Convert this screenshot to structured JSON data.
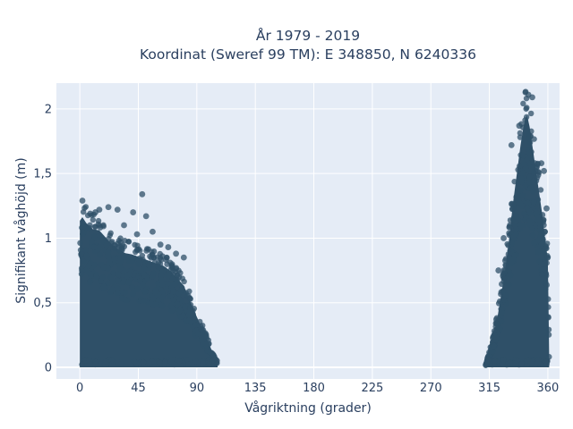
{
  "chart_data": {
    "type": "scatter",
    "title_line1": "År 1979 - 2019",
    "title_line2": "Koordinat (Sweref 99 TM): E 348850, N 6240336",
    "xlabel": "Vågriktning (grader)",
    "ylabel": "Signifikant våghöjd (m)",
    "xlim": [
      -18,
      369
    ],
    "ylim": [
      -0.09,
      2.2
    ],
    "xticks": [
      0,
      45,
      90,
      135,
      180,
      225,
      270,
      315,
      360
    ],
    "xtick_labels": [
      "0",
      "45",
      "90",
      "135",
      "180",
      "225",
      "270",
      "315",
      "360"
    ],
    "yticks": [
      0,
      0.5,
      1,
      1.5,
      2
    ],
    "ytick_labels": [
      "0",
      "0,5",
      "1",
      "1,5",
      "2"
    ],
    "grid": true,
    "marker_color": "#2f5068",
    "plot_bg": "#e5ecf6",
    "clusters": [
      {
        "name": "",
        "x_range": [
          0,
          106
        ],
        "envelope": [
          [
            0,
            1.22
          ],
          [
            2,
            1.25
          ],
          [
            5,
            1.2
          ],
          [
            10,
            1.15
          ],
          [
            15,
            1.14
          ],
          [
            20,
            1.08
          ],
          [
            25,
            1.02
          ],
          [
            30,
            0.98
          ],
          [
            35,
            0.95
          ],
          [
            40,
            0.94
          ],
          [
            45,
            0.92
          ],
          [
            50,
            0.9
          ],
          [
            55,
            0.88
          ],
          [
            60,
            0.86
          ],
          [
            65,
            0.84
          ],
          [
            70,
            0.8
          ],
          [
            75,
            0.74
          ],
          [
            80,
            0.68
          ],
          [
            85,
            0.55
          ],
          [
            90,
            0.42
          ],
          [
            95,
            0.3
          ],
          [
            100,
            0.18
          ],
          [
            103,
            0.1
          ],
          [
            106,
            0.03
          ]
        ]
      },
      {
        "name": "",
        "x_range": [
          312,
          361
        ],
        "envelope": [
          [
            312,
            0.02
          ],
          [
            315,
            0.12
          ],
          [
            318,
            0.25
          ],
          [
            321,
            0.4
          ],
          [
            324,
            0.6
          ],
          [
            327,
            0.8
          ],
          [
            330,
            1.05
          ],
          [
            333,
            1.35
          ],
          [
            336,
            1.6
          ],
          [
            339,
            1.85
          ],
          [
            342,
            2.05
          ],
          [
            344,
            2.1
          ],
          [
            346,
            2.0
          ],
          [
            348,
            1.85
          ],
          [
            350,
            1.7
          ],
          [
            352,
            1.55
          ],
          [
            354,
            1.4
          ],
          [
            356,
            1.25
          ],
          [
            358,
            1.05
          ],
          [
            360,
            0.9
          ],
          [
            361,
            0.1
          ]
        ]
      }
    ],
    "outliers": [
      [
        2,
        1.29
      ],
      [
        15,
        1.22
      ],
      [
        22,
        1.24
      ],
      [
        29,
        1.22
      ],
      [
        41,
        1.2
      ],
      [
        48,
        1.34
      ],
      [
        51,
        1.17
      ],
      [
        56,
        1.05
      ],
      [
        44,
        1.03
      ],
      [
        8,
        1.19
      ],
      [
        12,
        1.2
      ],
      [
        34,
        1.1
      ],
      [
        62,
        0.95
      ],
      [
        68,
        0.93
      ],
      [
        74,
        0.88
      ],
      [
        80,
        0.85
      ],
      [
        345,
        2.11
      ],
      [
        348,
        2.09
      ],
      [
        338,
        1.87
      ],
      [
        332,
        1.72
      ],
      [
        355,
        1.58
      ],
      [
        357,
        1.52
      ],
      [
        359,
        1.23
      ],
      [
        326,
        1.0
      ],
      [
        322,
        0.75
      ]
    ]
  }
}
